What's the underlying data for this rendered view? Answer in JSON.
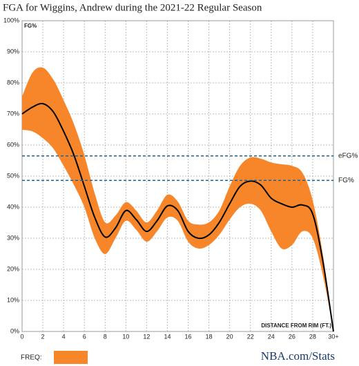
{
  "chart_data": {
    "type": "line",
    "title": "FGA for Wiggins, Andrew during the 2021-22 Regular Season",
    "x_label": "DISTANCE FROM RIM (FT.)",
    "y_label": "FG%",
    "x": [
      0,
      1,
      2,
      3,
      4,
      5,
      6,
      7,
      8,
      9,
      10,
      11,
      12,
      13,
      14,
      15,
      16,
      17,
      18,
      19,
      20,
      21,
      22,
      23,
      24,
      25,
      26,
      27,
      28,
      29,
      30
    ],
    "series": [
      {
        "color": "#000000",
        "values": [
          70,
          72.2,
          73.3,
          70.7,
          64.4,
          56.7,
          46.7,
          36.7,
          30.4,
          33.3,
          38.9,
          36,
          32.2,
          35.6,
          40.4,
          38.9,
          32.2,
          30,
          31.1,
          35.1,
          41.1,
          46.7,
          48.4,
          47.1,
          42.9,
          41.1,
          40,
          40.7,
          37.8,
          22.2,
          0
        ]
      },
      {
        "color": "#f7862a",
        "upper": [
          75.6,
          83.3,
          84.9,
          81.1,
          74.4,
          66.7,
          56.7,
          44.4,
          35.1,
          37.3,
          41.6,
          38.9,
          35.1,
          38.9,
          44,
          41.8,
          35.6,
          34.4,
          35.1,
          38.9,
          46.7,
          53.3,
          56,
          55.6,
          54.4,
          53.8,
          53.3,
          51.1,
          42.2,
          24.4,
          0
        ],
        "lower": [
          64.9,
          64.4,
          62.2,
          58.9,
          53.3,
          47.1,
          40,
          30,
          24.9,
          30,
          35.6,
          32.7,
          28.9,
          32.2,
          36.7,
          35.6,
          28.9,
          26.7,
          27.8,
          31.1,
          36,
          40,
          41.1,
          38.9,
          32.2,
          26.7,
          27.8,
          32.2,
          30,
          17.8,
          0
        ]
      }
    ],
    "reference_lines": [
      {
        "label": "eFG%",
        "value": 56.5
      },
      {
        "label": "FG%",
        "value": 48.6
      }
    ],
    "reference_color": "#1f6391",
    "legend": {
      "label": "FREQ:",
      "color": "#f7862a"
    },
    "source": "NBA.com/Stats",
    "xlim": [
      0,
      30
    ],
    "ylim": [
      0,
      100
    ],
    "xticks": [
      0,
      2,
      4,
      6,
      8,
      10,
      12,
      14,
      16,
      18,
      20,
      22,
      24,
      26,
      28,
      {
        "value": 30,
        "label": "30+"
      }
    ],
    "yticks": [
      {
        "value": 0,
        "label": "0%"
      },
      {
        "value": 10,
        "label": "10%"
      },
      {
        "value": 20,
        "label": "20%"
      },
      {
        "value": 30,
        "label": "30%"
      },
      {
        "value": 40,
        "label": "40%"
      },
      {
        "value": 50,
        "label": "50%"
      },
      {
        "value": 60,
        "label": "60%"
      },
      {
        "value": 70,
        "label": "70%"
      },
      {
        "value": 80,
        "label": "80%"
      },
      {
        "value": 90,
        "label": "90%"
      },
      {
        "value": 100,
        "label": "100%"
      }
    ],
    "grid": true
  }
}
